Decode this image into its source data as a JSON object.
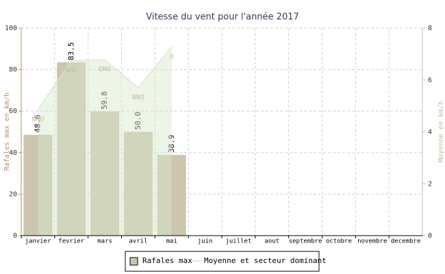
{
  "chart_data": {
    "type": "bar",
    "title": "Vitesse du vent pour l'année 2017",
    "y_label": "Rafales max en km/h",
    "y2_label": "Moyenne en km/h",
    "categories": [
      "janvier",
      "fevrier",
      "mars",
      "avril",
      "mai",
      "juin",
      "juillet",
      "aout",
      "septembre",
      "octobre",
      "novembre",
      "decembre"
    ],
    "series": [
      {
        "name": "Rafales max",
        "type": "bar",
        "color": "#cbc6ad",
        "values": [
          48.6,
          83.5,
          59.8,
          50.0,
          38.9,
          null,
          null,
          null,
          null,
          null,
          null,
          null
        ],
        "value_labels": [
          "48.6",
          "83.5",
          "59.8",
          "50.0",
          "38.9",
          null,
          null,
          null,
          null,
          null,
          null,
          null
        ]
      },
      {
        "name": "Moyenne et secteur dominant",
        "type": "area",
        "axis": "y2",
        "color": "#d6e6cc",
        "values": [
          4.86,
          6.75,
          6.78,
          5.7,
          7.28,
          null,
          null,
          null,
          null,
          null,
          null,
          null
        ],
        "point_labels": [
          "NNO",
          "NNE",
          "ONO",
          "NNO",
          "O",
          null,
          null,
          null,
          null,
          null,
          null,
          null
        ]
      }
    ],
    "ylim": [
      0,
      100
    ],
    "yticks": [
      0,
      20,
      40,
      60,
      80,
      100
    ],
    "y2lim": [
      0,
      8
    ],
    "y2ticks": [
      0,
      2,
      4,
      6,
      8
    ],
    "grid": true,
    "legend": "bottom"
  }
}
